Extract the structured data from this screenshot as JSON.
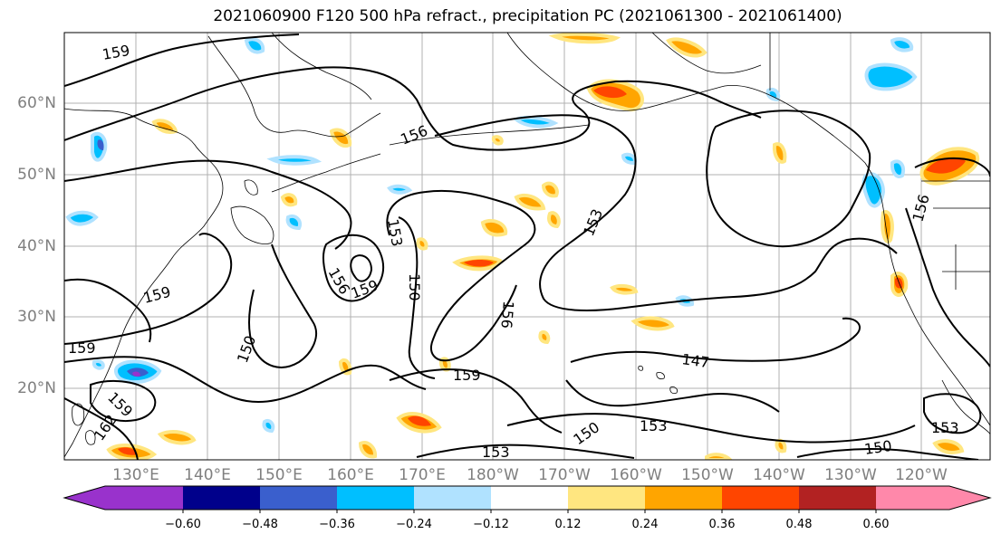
{
  "title": "2021060900 F120 500 hPa refract., precipitation PC (2021061300 - 2021061400)",
  "lat_labels": [
    "60°N",
    "50°N",
    "40°N",
    "30°N",
    "20°N"
  ],
  "lon_labels": [
    "130°E",
    "140°E",
    "150°E",
    "160°E",
    "170°E",
    "180°W",
    "170°W",
    "160°W",
    "150°W",
    "140°W",
    "130°W",
    "120°W"
  ],
  "contour_labels": [
    "159",
    "156",
    "153",
    "156",
    "159",
    "150",
    "153",
    "156",
    "159",
    "150",
    "147",
    "150",
    "153",
    "153",
    "150",
    "159",
    "159",
    "162",
    "156",
    "153",
    "159"
  ],
  "colorbar": {
    "ticks": [
      "−0.60",
      "−0.48",
      "−0.36",
      "−0.24",
      "−0.12",
      "0.12",
      "0.24",
      "0.36",
      "0.48",
      "0.60"
    ],
    "colors": [
      "#9932cc",
      "#00008b",
      "#3a5fcd",
      "#00bfff",
      "#b0e2ff",
      "#ffffff",
      "#ffe680",
      "#ffa500",
      "#ff4500",
      "#b22222",
      "#ff88aa"
    ]
  }
}
